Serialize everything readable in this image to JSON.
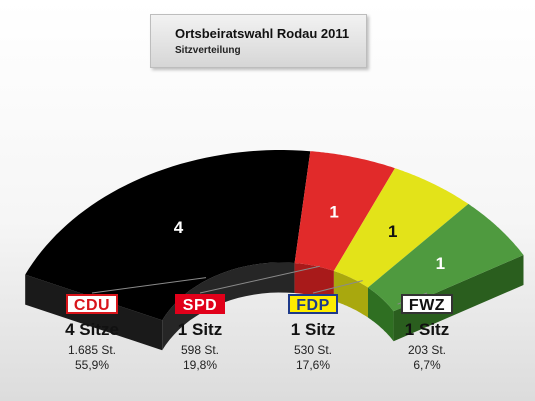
{
  "title": "Ortsbeiratswahl Rodau 2011",
  "subtitle": "Sitzverteilung",
  "chart_data": {
    "type": "pie",
    "variant": "semicircle-3d",
    "title": "Ortsbeiratswahl Rodau 2011",
    "subtitle": "Sitzverteilung",
    "total_seats": 7,
    "series": [
      {
        "name": "CDU",
        "seats": 4,
        "seat_label": "4",
        "seats_text": "4 Sitze",
        "votes_text": "1.685 St.",
        "percent_text": "55,9%",
        "color": "#000000",
        "side_color": "#262626"
      },
      {
        "name": "SPD",
        "seats": 1,
        "seat_label": "1",
        "seats_text": "1 Sitz",
        "votes_text": "598 St.",
        "percent_text": "19,8%",
        "color": "#e12a2a",
        "side_color": "#a81a1a"
      },
      {
        "name": "FDP",
        "seats": 1,
        "seat_label": "1",
        "seats_text": "1 Sitz",
        "votes_text": "530 St.",
        "percent_text": "17,6%",
        "color": "#e3e319",
        "side_color": "#a9a80e"
      },
      {
        "name": "FWZ",
        "seats": 1,
        "seat_label": "1",
        "seats_text": "1 Sitz",
        "votes_text": "203 St.",
        "percent_text": "6,7%",
        "color": "#4f9a3f",
        "side_color": "#2f6f22"
      }
    ]
  },
  "logos": {
    "cdu": {
      "text": "CDU",
      "fg": "#d8151b",
      "bg": "#ffffff",
      "border": "#d8151b"
    },
    "spd": {
      "text": "SPD",
      "fg": "#ffffff",
      "bg": "#e1001a",
      "border": "#e1001a"
    },
    "fdp": {
      "text": "FDP",
      "fg": "#1e3a8a",
      "bg": "#ffed00",
      "border": "#1e3a8a"
    },
    "fwz": {
      "text": "FWZ",
      "fg": "#111111",
      "bg": "#ffffff",
      "border": "#333333"
    }
  }
}
